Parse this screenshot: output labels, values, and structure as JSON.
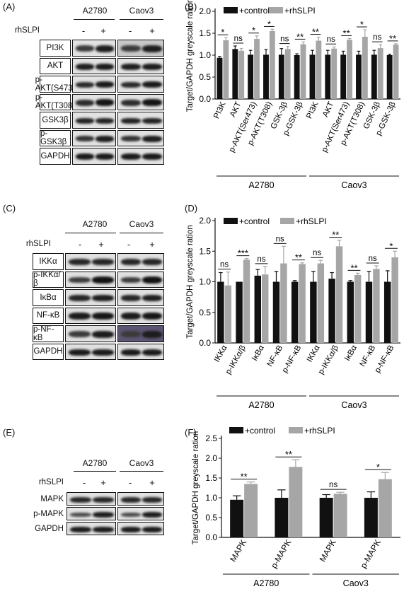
{
  "panels": {
    "A": "(A)",
    "B": "(B)",
    "C": "(C)",
    "D": "(D)",
    "E": "(E)",
    "F": "(F)"
  },
  "blots": [
    {
      "cell_lines": [
        "A2780",
        "Caov3"
      ],
      "treatment_label": "rhSLPI",
      "signs": [
        "-",
        "+",
        "-",
        "+"
      ],
      "rows": [
        "PI3K",
        "AKT",
        "p-AKT(S473)",
        "p-AKT(T308)",
        "GSK3β",
        "p-GSK3β",
        "GAPDH"
      ]
    },
    {
      "cell_lines": [
        "A2780",
        "Caov3"
      ],
      "treatment_label": "rhSLPI",
      "signs": [
        "-",
        "+",
        "-",
        "+"
      ],
      "rows": [
        "IKKα",
        "p-IKKα/β",
        "IκBα",
        "NF-κB",
        "p-NF-κB",
        "GAPDH"
      ]
    },
    {
      "cell_lines": [
        "A2780",
        "Caov3"
      ],
      "treatment_label": "rhSLPI",
      "signs": [
        "-",
        "+",
        "-",
        "+"
      ],
      "rows": [
        "MAPK",
        "p-MAPK",
        "GAPDH"
      ]
    }
  ],
  "colors": {
    "control": "#111111",
    "rhSLPI": "#a6a6a6"
  },
  "chart_data": [
    {
      "type": "bar",
      "ylabel": "Target/GAPDH greyscale ration",
      "ylim": [
        0,
        2.0
      ],
      "yticks": [
        "0.0",
        "0.5",
        "1.0",
        "1.5",
        "2.0"
      ],
      "legend_position": "top-left",
      "categories": [
        "PI3K",
        "AKT",
        "p-AKT(Ser473)",
        "p-AKT(T308)",
        "GSK-3β",
        "p-GSK-3β",
        "PI3K",
        "AKT",
        "p-AKT(Ser473)",
        "p-AKT(T308)",
        "GSK-3β",
        "p-GSK-3β"
      ],
      "groups": [
        {
          "name": "A2780",
          "count": 6
        },
        {
          "name": "Caov3",
          "count": 6
        }
      ],
      "series": [
        {
          "name": "+control",
          "values": [
            0.94,
            1.14,
            1.01,
            1.01,
            1.01,
            1.0,
            1.01,
            1.01,
            1.01,
            1.01,
            1.01,
            1.0
          ],
          "errors": [
            0.03,
            0.07,
            0.1,
            0.12,
            0.14,
            0.03,
            0.1,
            0.1,
            0.08,
            0.08,
            0.1,
            0.02
          ]
        },
        {
          "name": "+rhSLPI",
          "values": [
            1.34,
            1.1,
            1.37,
            1.55,
            1.14,
            1.25,
            1.33,
            1.15,
            1.35,
            1.42,
            1.16,
            1.24
          ],
          "errors": [
            0.06,
            0.05,
            0.07,
            0.04,
            0.06,
            0.05,
            0.08,
            0.04,
            0.03,
            0.16,
            0.08,
            0.02
          ]
        }
      ],
      "significance": [
        "*",
        "ns",
        "*",
        "*",
        "ns",
        "**",
        "**",
        "ns",
        "**",
        "*",
        "ns",
        "**"
      ]
    },
    {
      "type": "bar",
      "ylabel": "Target/GAPDH greyscale ration",
      "ylim": [
        0,
        2.0
      ],
      "yticks": [
        "0.0",
        "0.5",
        "1.0",
        "1.5",
        "2.0"
      ],
      "legend_position": "top-left",
      "categories": [
        "IKKα",
        "p-IKKα/β",
        "IκBα",
        "NF-κB",
        "p-NF-κB",
        "IKKα",
        "p-IKKα/β",
        "IκBα",
        "NF-κB",
        "p-NF-κB"
      ],
      "groups": [
        {
          "name": "A2780",
          "count": 5
        },
        {
          "name": "Caov3",
          "count": 5
        }
      ],
      "series": [
        {
          "name": "+control",
          "values": [
            1.0,
            1.0,
            1.1,
            1.0,
            1.0,
            1.0,
            1.05,
            1.0,
            1.0,
            1.0
          ],
          "errors": [
            0.15,
            0.0,
            0.1,
            0.17,
            0.02,
            0.17,
            0.1,
            0.02,
            0.17,
            0.18
          ]
        },
        {
          "name": "+rhSLPI",
          "values": [
            0.94,
            1.36,
            1.12,
            1.3,
            1.29,
            1.3,
            1.58,
            1.11,
            1.21,
            1.4
          ],
          "errors": [
            0.22,
            0.02,
            0.13,
            0.28,
            0.02,
            0.05,
            0.1,
            0.03,
            0.05,
            0.1
          ]
        }
      ],
      "significance": [
        "ns",
        "***",
        "ns",
        "ns",
        "**",
        "ns",
        "**",
        "**",
        "ns",
        "*"
      ]
    },
    {
      "type": "bar",
      "ylabel": "Target/GAPDH greyscale ration",
      "ylim": [
        0,
        2.5
      ],
      "yticks": [
        "0.0",
        "0.5",
        "1.0",
        "1.5",
        "2.0",
        "2.5"
      ],
      "legend_position": "top-left",
      "categories": [
        "MAPK",
        "p-MAPK",
        "MAPK",
        "p-MAPK"
      ],
      "groups": [
        {
          "name": "A2780",
          "count": 2
        },
        {
          "name": "Caov3",
          "count": 2
        }
      ],
      "series": [
        {
          "name": "+control",
          "values": [
            0.95,
            1.0,
            1.0,
            1.0
          ],
          "errors": [
            0.1,
            0.2,
            0.08,
            0.15
          ]
        },
        {
          "name": "+rhSLPI",
          "values": [
            1.35,
            1.78,
            1.1,
            1.47
          ],
          "errors": [
            0.05,
            0.18,
            0.04,
            0.17
          ]
        }
      ],
      "significance": [
        "**",
        "**",
        "ns",
        "*"
      ]
    }
  ]
}
